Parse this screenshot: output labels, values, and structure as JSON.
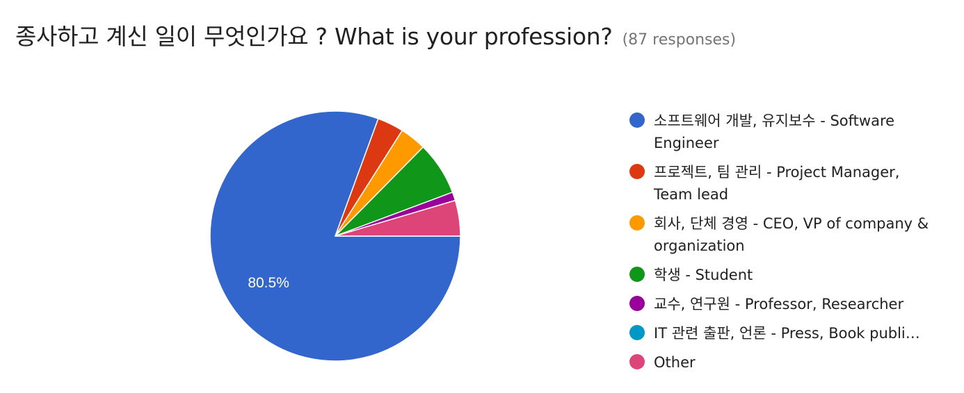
{
  "header": {
    "title": "종사하고 계신 일이 무엇인가요 ? What is your profession?",
    "responses": "(87 responses)"
  },
  "chart_data": {
    "type": "pie",
    "total_responses": 87,
    "slices": [
      {
        "label": "소프트웨어 개발, 유지보수 - Software Engineer",
        "percent": 80.5,
        "color": "#3366cc"
      },
      {
        "label": "프로젝트, 팀 관리 - Project Manager, Team lead",
        "percent": 3.4,
        "color": "#dc3912"
      },
      {
        "label": "회사, 단체 경영 - CEO, VP of company & organization",
        "percent": 3.4,
        "color": "#ff9900"
      },
      {
        "label": "학생 - Student",
        "percent": 6.9,
        "color": "#109618"
      },
      {
        "label": "교수, 연구원 - Professor, Researcher",
        "percent": 1.1,
        "color": "#990099"
      },
      {
        "label": "IT 관련 출판, 언론 - Press, Book publi…",
        "percent": 0,
        "color": "#0099c6"
      },
      {
        "label": "Other",
        "percent": 4.6,
        "color": "#dd4477"
      }
    ],
    "data_labels": [
      "80.5%"
    ],
    "legend_position": "right"
  }
}
